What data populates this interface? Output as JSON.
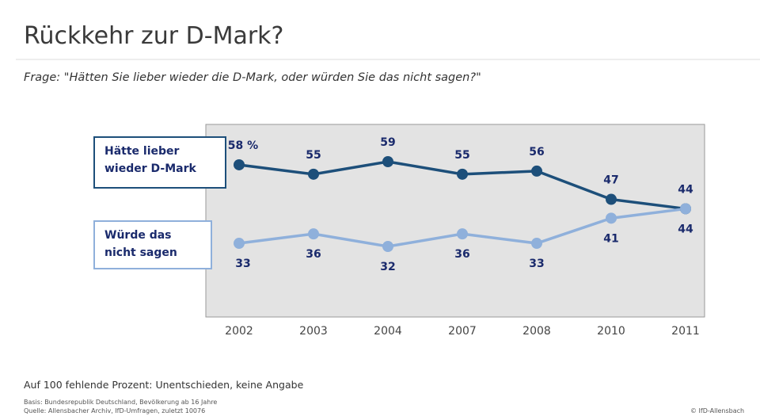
{
  "title": "Rückkehr zur D-Mark?",
  "subtitle": "Frage: \"Hätten Sie lieber wieder die D-Mark, oder würden Sie das nicht sagen?\"",
  "chart_data": {
    "type": "line",
    "categories": [
      "2002",
      "2003",
      "2004",
      "2007",
      "2008",
      "2010",
      "2011"
    ],
    "series": [
      {
        "name": "Hätte lieber wieder D-Mark",
        "color": "#1d4f7a",
        "values": [
          58,
          55,
          59,
          55,
          56,
          47,
          44
        ],
        "value_labels": [
          "58 %",
          "55",
          "59",
          "55",
          "56",
          "47",
          "44"
        ]
      },
      {
        "name": "Würde das nicht sagen",
        "color": "#8fb0db",
        "values": [
          33,
          36,
          32,
          36,
          33,
          41,
          44
        ]
      }
    ]
  },
  "footnote": "Auf 100 fehlende Prozent: Unentschieden, keine Angabe",
  "basis": "Basis: Bundesrepublik Deutschland, Bevölkerung ab 16 Jahre",
  "source": "Quelle: Allensbacher Archiv, IfD-Umfragen, zuletzt 10076",
  "credit": "© IfD-Allensbach"
}
